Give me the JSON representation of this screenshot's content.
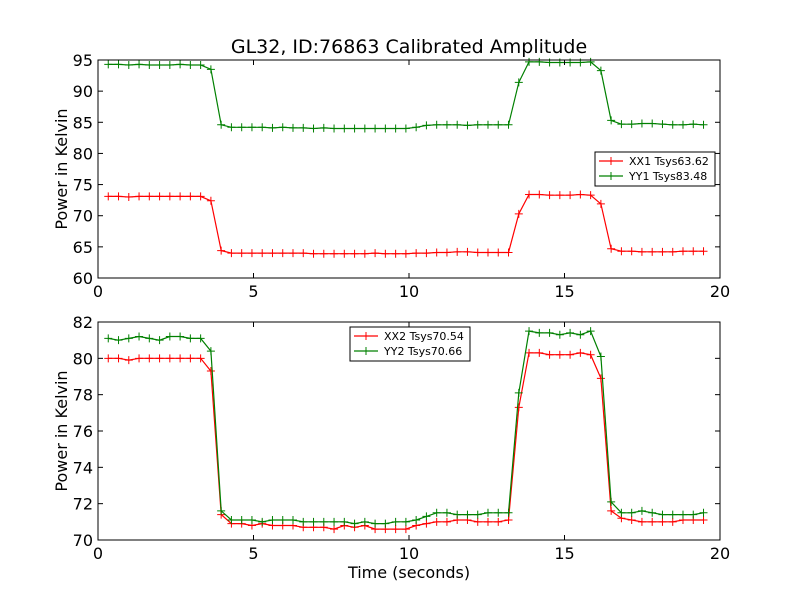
{
  "chart_data": [
    {
      "type": "line",
      "title": "GL32, ID:76863 Calibrated Amplitude",
      "xlabel": "",
      "ylabel": "Power in Kelvin",
      "xlim": [
        0,
        20
      ],
      "ylim": [
        60,
        95
      ],
      "xticks": [
        0,
        5,
        10,
        15,
        20
      ],
      "xtick_labels": [
        "0",
        "5",
        "10",
        "15",
        "20"
      ],
      "yticks": [
        60,
        65,
        70,
        75,
        80,
        85,
        90,
        95
      ],
      "ytick_labels": [
        "60",
        "65",
        "70",
        "75",
        "80",
        "85",
        "90",
        "95"
      ],
      "grid": false,
      "legend_position": "center-right",
      "x": [
        0.33,
        0.66,
        0.99,
        1.32,
        1.65,
        1.98,
        2.31,
        2.64,
        2.97,
        3.3,
        3.63,
        3.96,
        4.29,
        4.62,
        4.95,
        5.28,
        5.61,
        5.94,
        6.27,
        6.6,
        6.93,
        7.26,
        7.59,
        7.92,
        8.25,
        8.58,
        8.91,
        9.24,
        9.57,
        9.9,
        10.23,
        10.56,
        10.89,
        11.22,
        11.55,
        11.88,
        12.21,
        12.54,
        12.87,
        13.2,
        13.53,
        13.86,
        14.19,
        14.52,
        14.85,
        15.18,
        15.51,
        15.84,
        16.17,
        16.5,
        16.83,
        17.16,
        17.49,
        17.82,
        18.15,
        18.48,
        18.81,
        19.14,
        19.47
      ],
      "series": [
        {
          "name": "XX1 Tsys63.62",
          "color": "#ff0000",
          "values": [
            73.1,
            73.1,
            73.0,
            73.1,
            73.1,
            73.1,
            73.1,
            73.1,
            73.1,
            73.1,
            72.4,
            64.4,
            64.0,
            64.0,
            64.0,
            64.0,
            64.0,
            64.0,
            64.0,
            64.0,
            63.9,
            63.9,
            63.9,
            63.9,
            63.9,
            63.9,
            64.0,
            63.9,
            63.9,
            63.9,
            64.0,
            64.0,
            64.1,
            64.1,
            64.2,
            64.2,
            64.1,
            64.1,
            64.1,
            64.1,
            70.3,
            73.4,
            73.4,
            73.3,
            73.3,
            73.3,
            73.4,
            73.3,
            71.9,
            64.7,
            64.3,
            64.3,
            64.2,
            64.2,
            64.2,
            64.2,
            64.3,
            64.3,
            64.3
          ]
        },
        {
          "name": "YY1 Tsys83.48",
          "color": "#008000",
          "values": [
            94.3,
            94.3,
            94.2,
            94.3,
            94.2,
            94.2,
            94.2,
            94.3,
            94.2,
            94.2,
            93.5,
            84.6,
            84.2,
            84.2,
            84.2,
            84.2,
            84.1,
            84.2,
            84.1,
            84.1,
            84.0,
            84.1,
            84.0,
            84.0,
            84.0,
            84.0,
            84.0,
            84.0,
            84.0,
            84.0,
            84.2,
            84.5,
            84.6,
            84.6,
            84.6,
            84.5,
            84.6,
            84.6,
            84.6,
            84.6,
            91.4,
            94.7,
            94.7,
            94.6,
            94.6,
            94.6,
            94.6,
            94.7,
            93.3,
            85.3,
            84.7,
            84.7,
            84.8,
            84.8,
            84.7,
            84.6,
            84.6,
            84.7,
            84.6
          ]
        }
      ]
    },
    {
      "type": "line",
      "title": "",
      "xlabel": "Time (seconds)",
      "ylabel": "Power in Kelvin",
      "xlim": [
        0,
        20
      ],
      "ylim": [
        70,
        82
      ],
      "xticks": [
        0,
        5,
        10,
        15,
        20
      ],
      "xtick_labels": [
        "0",
        "5",
        "10",
        "15",
        "20"
      ],
      "yticks": [
        70,
        72,
        74,
        76,
        78,
        80,
        82
      ],
      "ytick_labels": [
        "70",
        "72",
        "74",
        "76",
        "78",
        "80",
        "82"
      ],
      "grid": false,
      "legend_position": "upper-center",
      "x": [
        0.33,
        0.66,
        0.99,
        1.32,
        1.65,
        1.98,
        2.31,
        2.64,
        2.97,
        3.3,
        3.63,
        3.96,
        4.29,
        4.62,
        4.95,
        5.28,
        5.61,
        5.94,
        6.27,
        6.6,
        6.93,
        7.26,
        7.59,
        7.92,
        8.25,
        8.58,
        8.91,
        9.24,
        9.57,
        9.9,
        10.23,
        10.56,
        10.89,
        11.22,
        11.55,
        11.88,
        12.21,
        12.54,
        12.87,
        13.2,
        13.53,
        13.86,
        14.19,
        14.52,
        14.85,
        15.18,
        15.51,
        15.84,
        16.17,
        16.5,
        16.83,
        17.16,
        17.49,
        17.82,
        18.15,
        18.48,
        18.81,
        19.14,
        19.47
      ],
      "series": [
        {
          "name": "XX2 Tsys70.54",
          "color": "#ff0000",
          "values": [
            80.0,
            80.0,
            79.9,
            80.0,
            80.0,
            80.0,
            80.0,
            80.0,
            80.0,
            80.0,
            79.3,
            71.4,
            70.9,
            70.9,
            70.8,
            70.9,
            70.8,
            70.8,
            70.8,
            70.7,
            70.7,
            70.7,
            70.6,
            70.8,
            70.7,
            70.8,
            70.6,
            70.6,
            70.6,
            70.6,
            70.8,
            70.9,
            71.0,
            71.0,
            71.1,
            71.1,
            71.0,
            71.0,
            71.0,
            71.1,
            77.3,
            80.3,
            80.3,
            80.2,
            80.2,
            80.2,
            80.3,
            80.2,
            78.9,
            71.6,
            71.2,
            71.1,
            71.0,
            71.0,
            71.0,
            71.0,
            71.1,
            71.1,
            71.1
          ]
        },
        {
          "name": "YY2 Tsys70.66",
          "color": "#008000",
          "values": [
            81.1,
            81.0,
            81.1,
            81.2,
            81.1,
            81.0,
            81.2,
            81.2,
            81.1,
            81.1,
            80.4,
            71.6,
            71.1,
            71.1,
            71.1,
            71.0,
            71.1,
            71.1,
            71.1,
            71.0,
            71.0,
            71.0,
            71.0,
            71.0,
            70.9,
            71.0,
            70.9,
            70.9,
            71.0,
            71.0,
            71.1,
            71.3,
            71.5,
            71.5,
            71.4,
            71.4,
            71.4,
            71.5,
            71.5,
            71.5,
            78.1,
            81.5,
            81.4,
            81.4,
            81.3,
            81.4,
            81.3,
            81.5,
            80.1,
            72.1,
            71.5,
            71.5,
            71.6,
            71.5,
            71.4,
            71.4,
            71.4,
            71.4,
            71.5
          ]
        }
      ]
    }
  ]
}
